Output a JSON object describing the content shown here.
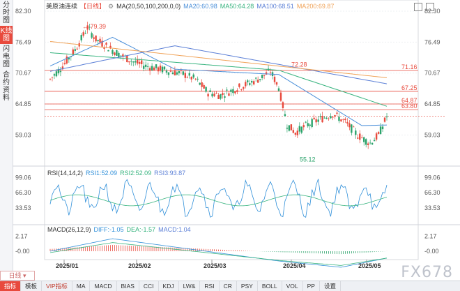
{
  "sidebar": {
    "items": [
      {
        "label": "分时图",
        "active": false
      },
      {
        "label": "K线图",
        "active": true
      },
      {
        "label": "闪电图",
        "active": false
      },
      {
        "label": "合约资料",
        "active": false
      }
    ]
  },
  "header": {
    "title": "美原油连续",
    "period": "【日线】",
    "ma_spec": "MA(20,50,100,200,0,0)",
    "ma20": "MA20:60.98",
    "ma50": "MA50:64.28",
    "ma100": "MA100:68.51",
    "ma200": "MA200:69.87"
  },
  "price_axis": {
    "ticks": [
      "82.30",
      "76.49",
      "70.67",
      "64.85",
      "59.03"
    ]
  },
  "price_lines": [
    {
      "value": 71.16,
      "label": "71.16"
    },
    {
      "value": 67.25,
      "label": "67.25"
    },
    {
      "value": 64.87,
      "label": "64.87"
    },
    {
      "value": 63.8,
      "label": "63.80"
    }
  ],
  "annotations": {
    "high": "79.39",
    "mid_high": "72.28",
    "low": "55.12"
  },
  "rsi": {
    "header": "RSI(14,14,2)",
    "rsi1": "RSI1:52.09",
    "rsi2": "RSI2:52.09",
    "rsi3": "RSI3:93.87",
    "ticks": [
      "99.06",
      "66.30",
      "33.53"
    ]
  },
  "macd": {
    "header": "MACD(26,12,9)",
    "diff": "DIFF:-1.05",
    "dea": "DEA:-1.57",
    "macd": "MACD:1.04",
    "ticks": [
      "2.17",
      "-0.00"
    ]
  },
  "date_axis": [
    "2025/01",
    "2025/02",
    "2025/03",
    "2025/04",
    "2025/05"
  ],
  "bottom": {
    "period_label": "日线",
    "tabs": [
      "指标",
      "模板",
      "VIP指标",
      "MA",
      "MACD",
      "BIAS",
      "CCI",
      "KDJ",
      "LW&",
      "RSI",
      "CR",
      "PSY",
      "BOLL",
      "VOL",
      "PP",
      "设置"
    ]
  },
  "watermark": "FX678",
  "colors": {
    "up": "#e84a3d",
    "down": "#2ba36b",
    "ma20": "#4a8fd9",
    "ma50": "#36b37e",
    "ma100": "#5b7fd6",
    "ma200": "#f0a257"
  }
}
